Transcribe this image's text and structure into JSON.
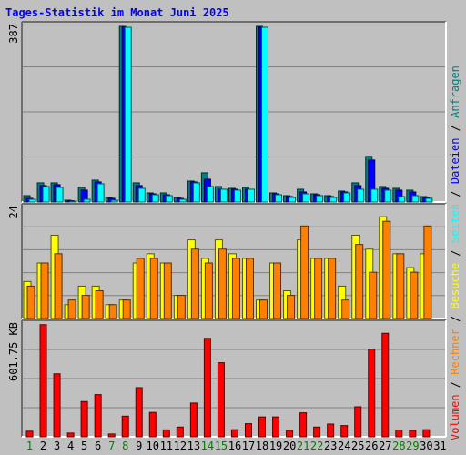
{
  "chart_data": {
    "type": "bar",
    "title": "Tages-Statistik im Monat Juni 2025",
    "categories": [
      "1",
      "2",
      "3",
      "4",
      "5",
      "6",
      "7",
      "8",
      "9",
      "10",
      "11",
      "12",
      "13",
      "14",
      "15",
      "16",
      "17",
      "18",
      "19",
      "20",
      "21",
      "22",
      "23",
      "24",
      "25",
      "26",
      "27",
      "28",
      "29",
      "30",
      "31"
    ],
    "weekend_days": [
      "1",
      "7",
      "8",
      "14",
      "15",
      "21",
      "22",
      "28",
      "29"
    ],
    "panels": [
      {
        "ymax_label": "387",
        "ylim": [
          0,
          387
        ],
        "series": [
          {
            "name": "Anfragen",
            "color": "#008080",
            "values": [
              14,
              42,
              42,
              4,
              32,
              48,
              10,
              385,
              42,
              20,
              20,
              10,
              46,
              64,
              34,
              30,
              32,
              385,
              20,
              14,
              28,
              18,
              14,
              24,
              42,
              100,
              34,
              30,
              26,
              12,
              0
            ]
          },
          {
            "name": "Dateien",
            "color": "#0000ff",
            "values": [
              8,
              36,
              38,
              3,
              26,
              44,
              8,
              383,
              36,
              18,
              16,
              8,
              44,
              50,
              28,
              28,
              28,
              383,
              18,
              12,
              22,
              16,
              12,
              22,
              36,
              92,
              30,
              26,
              22,
              10,
              0
            ]
          },
          {
            "name": "Seiten",
            "color": "#00ffff",
            "values": [
              6,
              34,
              32,
              2,
              6,
              40,
              4,
              383,
              30,
              16,
              14,
              6,
              42,
              34,
              28,
              26,
              28,
              383,
              16,
              10,
              18,
              14,
              10,
              20,
              28,
              28,
              26,
              12,
              14,
              8,
              0
            ]
          }
        ]
      },
      {
        "ymax_label": "24",
        "ylim": [
          0,
          24
        ],
        "series": [
          {
            "name": "Besuche",
            "color": "#ffff00",
            "values": [
              8,
              12,
              18,
              3,
              7,
              7,
              3,
              4,
              12,
              14,
              12,
              5,
              17,
              13,
              17,
              14,
              13,
              4,
              12,
              6,
              17,
              13,
              13,
              7,
              18,
              15,
              22,
              14,
              11,
              14,
              0
            ]
          },
          {
            "name": "Rechner",
            "color": "#ff8000",
            "values": [
              7,
              12,
              14,
              4,
              5,
              6,
              3,
              4,
              13,
              13,
              12,
              5,
              15,
              12,
              15,
              13,
              13,
              4,
              12,
              5,
              20,
              13,
              13,
              4,
              16,
              10,
              21,
              14,
              10,
              20,
              0
            ]
          }
        ]
      },
      {
        "ymax_label": "601.75 KB",
        "ylim": [
          0,
          601.75
        ],
        "series": [
          {
            "name": "Volumen",
            "color": "#ff0000",
            "values": [
              30,
              598,
              336,
              20,
              188,
              225,
              15,
              110,
              262,
              130,
              37,
              52,
              180,
              525,
              395,
              38,
              70,
              106,
              106,
              34,
              128,
              52,
              68,
              60,
              160,
              467,
              552,
              36,
              34,
              38,
              0
            ]
          }
        ]
      }
    ],
    "legend_order": [
      "Volumen",
      "Rechner",
      "Besuche",
      "Seiten",
      "Dateien",
      "Anfragen"
    ],
    "legend_separator": "/",
    "legend_placement": "right (vertical)",
    "grid": true,
    "colors": {
      "background": "#c0c0c0",
      "title": "#0000ff",
      "weekday_label": "#000000",
      "weekend_label": "#008000"
    }
  }
}
